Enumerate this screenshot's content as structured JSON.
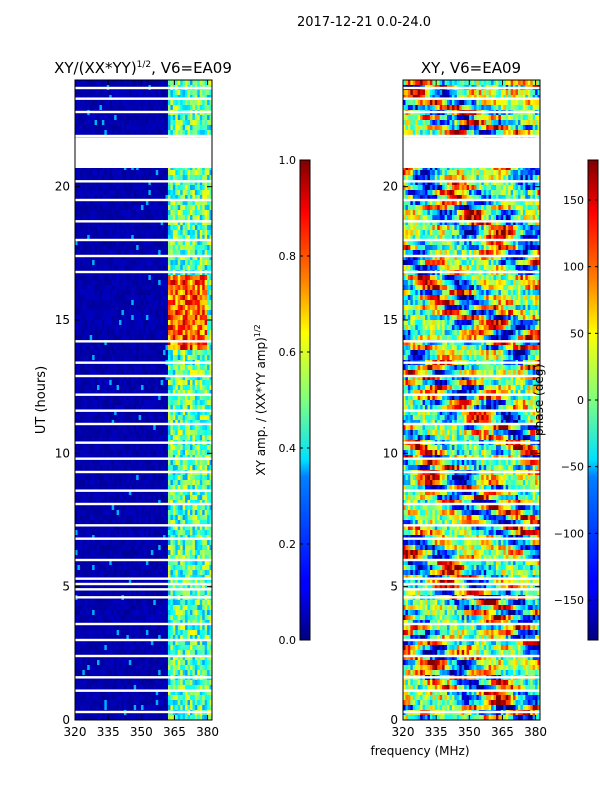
{
  "figure": {
    "suptitle": "2017-12-21 0.0-24.0",
    "xlabel": "frequency (MHz)"
  },
  "chart_data": [
    {
      "type": "heatmap",
      "title": "XY/(XX*YY)",
      "title_superscript": "1/2",
      "title_suffix": ", V6=EA09",
      "xlabel": "",
      "ylabel": "UT (hours)",
      "xlim": [
        320,
        382
      ],
      "ylim": [
        0,
        24
      ],
      "xticks": [
        320,
        335,
        350,
        365,
        380
      ],
      "yticks": [
        0,
        5,
        10,
        15,
        20
      ],
      "colorbar": {
        "label": "XY amp. / (XX*YY amp)",
        "label_superscript": "1/2",
        "range": [
          0.0,
          1.0
        ],
        "ticks": [
          "0.0",
          "0.2",
          "0.4",
          "0.6",
          "0.8",
          "1.0"
        ],
        "tick_values": [
          0.0,
          0.2,
          0.4,
          0.6,
          0.8,
          1.0
        ],
        "colormap": "jet"
      },
      "background_value": 0.02,
      "bright_band": {
        "freq_range": [
          362,
          382
        ],
        "typical_value": 0.45
      },
      "hot_patch": {
        "freq_range": [
          362,
          380
        ],
        "time_range": [
          13.8,
          16.7
        ],
        "typical_value": 0.78
      },
      "gaps_hours": [
        0.3,
        1.1,
        1.6,
        2.4,
        3.0,
        3.6,
        4.6,
        4.9,
        5.1,
        5.3,
        6.0,
        6.8,
        7.3,
        8.1,
        8.6,
        9.3,
        9.8,
        10.4,
        11.1,
        11.6,
        12.2,
        12.9,
        13.4,
        14.2,
        16.8,
        17.4,
        18.0,
        18.7,
        19.5,
        20.2,
        20.9,
        21.2,
        21.5,
        21.9,
        22.8,
        23.3,
        23.7
      ]
    },
    {
      "type": "heatmap",
      "title": "XY, V6=EA09",
      "xlabel": "",
      "ylabel": "",
      "xlim": [
        320,
        382
      ],
      "ylim": [
        0,
        24
      ],
      "xticks": [
        320,
        335,
        350,
        365,
        380
      ],
      "yticks": [
        0,
        5,
        10,
        15,
        20
      ],
      "colorbar": {
        "label": "phase (deg)",
        "range": [
          -180,
          180
        ],
        "ticks": [
          "150",
          "100",
          "50",
          "0",
          "−50",
          "−100",
          "−150"
        ],
        "tick_values": [
          150,
          100,
          50,
          0,
          -50,
          -100,
          -150
        ],
        "colormap": "jet"
      },
      "gaps_hours": [
        0.3,
        1.1,
        1.6,
        2.4,
        3.0,
        3.6,
        4.6,
        4.9,
        5.1,
        5.3,
        6.0,
        6.8,
        7.3,
        8.1,
        8.6,
        9.3,
        9.8,
        10.4,
        11.1,
        11.6,
        12.2,
        12.9,
        13.4,
        14.2,
        16.8,
        17.4,
        18.0,
        18.7,
        19.5,
        20.2,
        20.9,
        21.2,
        21.5,
        21.9,
        22.8,
        23.3,
        23.7
      ]
    }
  ]
}
